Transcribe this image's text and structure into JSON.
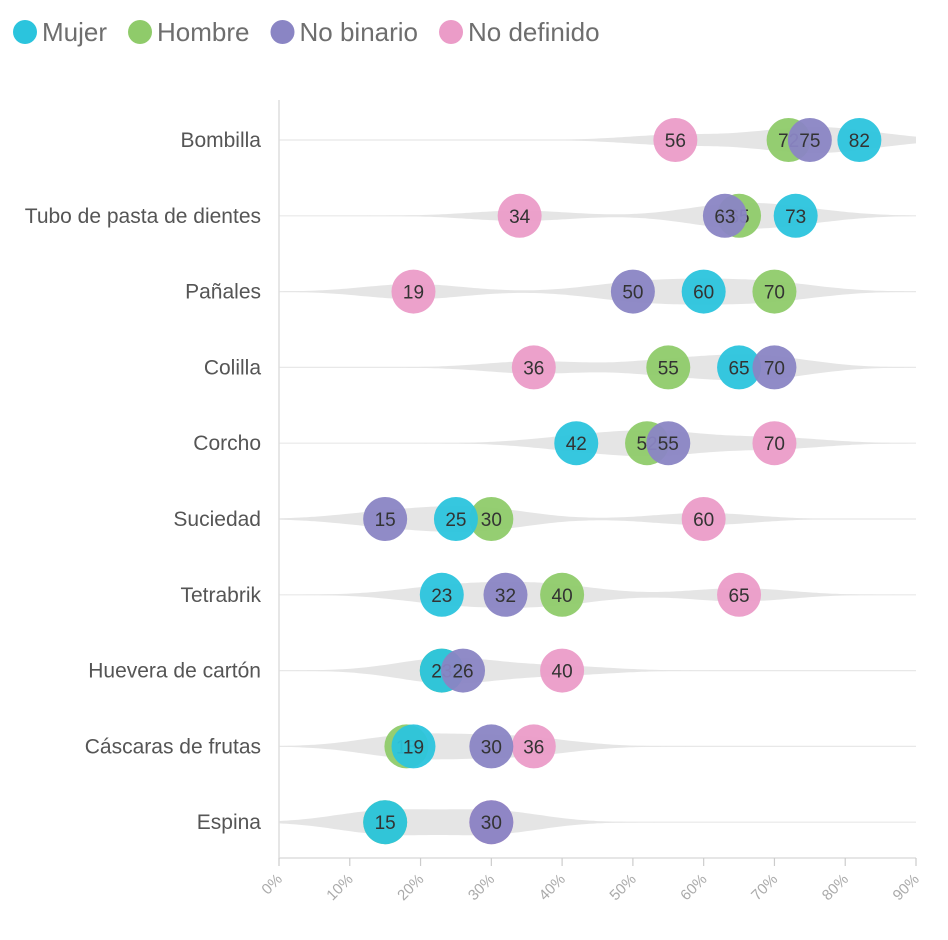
{
  "chart_data": {
    "type": "scatter",
    "legend": [
      {
        "name": "Mujer",
        "color": "#2bc4dd"
      },
      {
        "name": "Hombre",
        "color": "#8fcb6a"
      },
      {
        "name": "No binario",
        "color": "#8a85c4"
      },
      {
        "name": "No definido",
        "color": "#eb9cc8"
      }
    ],
    "legend_position": "top-left",
    "xlim": [
      0,
      90
    ],
    "x_ticks": [
      0,
      10,
      20,
      30,
      40,
      50,
      60,
      70,
      80,
      90
    ],
    "x_tick_labels": [
      "0%",
      "10%",
      "20%",
      "30%",
      "40%",
      "50%",
      "60%",
      "70%",
      "80%",
      "90%"
    ],
    "grid": true,
    "categories": [
      {
        "label": "Bombilla",
        "values": {
          "Mujer": 82,
          "Hombre": 72,
          "No binario": 75,
          "No definido": 56
        }
      },
      {
        "label": "Tubo de pasta de dientes",
        "values": {
          "Mujer": 73,
          "Hombre": 65,
          "No binario": 63,
          "No definido": 34
        }
      },
      {
        "label": "Pañales",
        "values": {
          "Mujer": 60,
          "Hombre": 70,
          "No binario": 50,
          "No definido": 19
        }
      },
      {
        "label": "Colilla",
        "values": {
          "Mujer": 65,
          "Hombre": 55,
          "No binario": 70,
          "No definido": 36
        }
      },
      {
        "label": "Corcho",
        "values": {
          "Mujer": 42,
          "Hombre": 52,
          "No binario": 55,
          "No definido": 70
        }
      },
      {
        "label": "Suciedad",
        "values": {
          "Mujer": 25,
          "Hombre": 30,
          "No binario": 15,
          "No definido": 60
        }
      },
      {
        "label": "Tetrabrik",
        "values": {
          "Mujer": 23,
          "Hombre": 40,
          "No binario": 32,
          "No definido": 65
        }
      },
      {
        "label": "Huevera de cartón",
        "values": {
          "Mujer": 23,
          "Hombre": 23,
          "No binario": 26,
          "No definido": 40
        }
      },
      {
        "label": "Cáscaras de frutas",
        "values": {
          "Mujer": 19,
          "Hombre": 18,
          "No binario": 30,
          "No definido": 36
        }
      },
      {
        "label": "Espina",
        "values": {
          "Mujer": 15,
          "Hombre": 15,
          "No binario": 30,
          "No definido": 30
        }
      }
    ]
  }
}
